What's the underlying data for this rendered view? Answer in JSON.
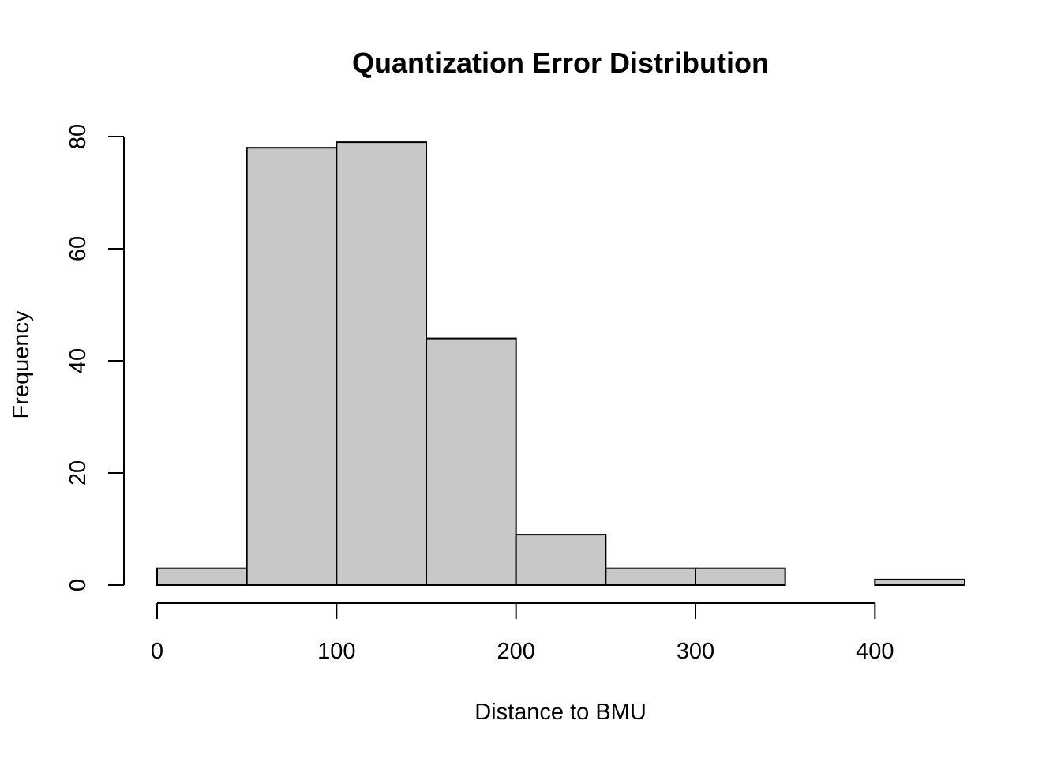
{
  "chart_data": {
    "type": "bar",
    "subtype": "histogram",
    "title": "Quantization Error Distribution",
    "xlabel": "Distance to BMU",
    "ylabel": "Frequency",
    "bin_edges": [
      0,
      50,
      100,
      150,
      200,
      250,
      300,
      350,
      400,
      450
    ],
    "values": [
      3,
      78,
      79,
      44,
      9,
      3,
      3,
      0,
      1
    ],
    "xlim": [
      0,
      450
    ],
    "ylim": [
      0,
      80
    ],
    "x_ticks": [
      0,
      100,
      200,
      300,
      400
    ],
    "y_ticks": [
      0,
      20,
      40,
      60,
      80
    ],
    "bar_color": "#c8c8c8",
    "grid": false
  }
}
